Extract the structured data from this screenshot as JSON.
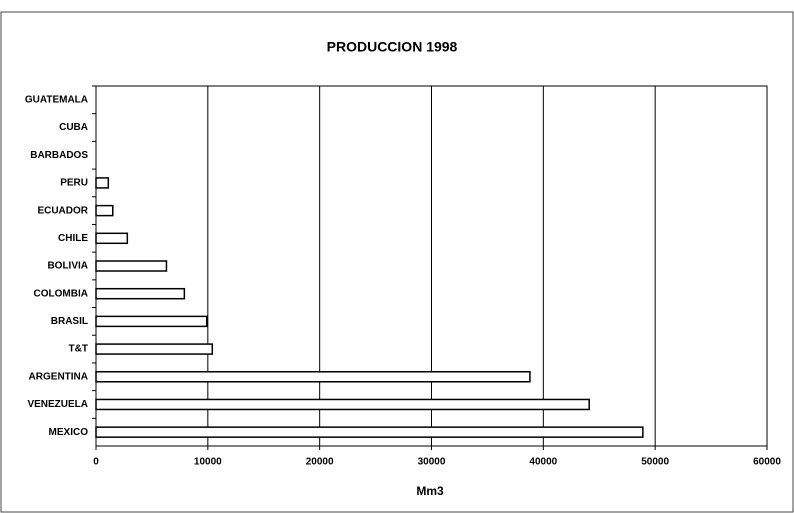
{
  "chart_data": {
    "type": "barh",
    "title": "PRODUCCION 1998",
    "x_label": "Mm3",
    "categories": [
      "GUATEMALA",
      "CUBA",
      "BARBADOS",
      "PERU",
      "ECUADOR",
      "CHILE",
      "BOLIVIA",
      "COLOMBIA",
      "BRASIL",
      "T&T",
      "ARGENTINA",
      "VENEZUELA",
      "MEXICO"
    ],
    "values": [
      0,
      0,
      0,
      1100,
      1500,
      2800,
      6300,
      7900,
      9900,
      10400,
      38800,
      44100,
      48900
    ],
    "color": "#ffffff",
    "xlim": [
      0,
      60000
    ],
    "xticks": [
      0,
      10000,
      20000,
      30000,
      40000,
      50000,
      60000
    ],
    "grid": true
  }
}
